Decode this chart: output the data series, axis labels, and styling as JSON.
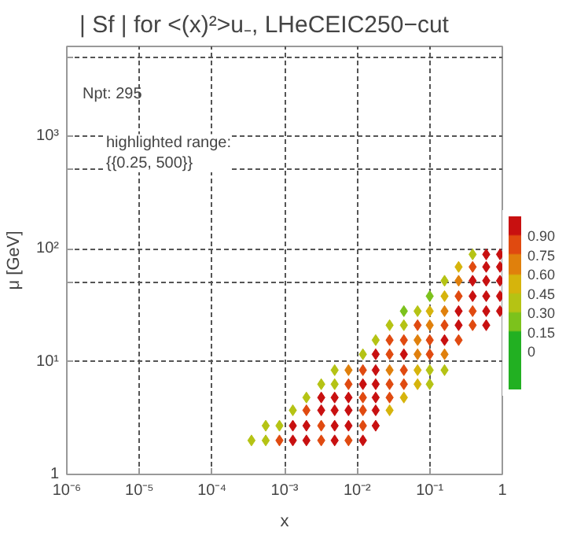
{
  "chart_data": {
    "type": "scatter",
    "title": "| Sf | for <(x)²>u₋, LHeCEIC250−cut",
    "xlabel": "x",
    "ylabel": "μ [GeV]",
    "log": "xy",
    "marker": "diamond",
    "grid": true,
    "xlim": [
      1e-06,
      1
    ],
    "ylim": [
      1,
      6200
    ],
    "xticks": [
      {
        "value": 1e-06,
        "label": "10⁻⁶"
      },
      {
        "value": 1e-05,
        "label": "10⁻⁵"
      },
      {
        "value": 0.0001,
        "label": "10⁻⁴"
      },
      {
        "value": 0.001,
        "label": "10⁻³"
      },
      {
        "value": 0.01,
        "label": "10⁻²"
      },
      {
        "value": 0.1,
        "label": "10⁻¹"
      },
      1
    ],
    "yticks": [
      1,
      {
        "value": 10,
        "label": "10¹"
      },
      {
        "value": 50,
        "label": null
      },
      {
        "value": 100,
        "label": "10²"
      },
      {
        "value": 500,
        "label": null
      },
      {
        "value": 1000,
        "label": "10³"
      },
      {
        "value": 5000,
        "label": null
      }
    ],
    "clim": [
      -0.3,
      1.05
    ],
    "cticks": [
      0,
      0.15,
      {
        "value": 0.3,
        "label": "0.30"
      },
      0.45,
      {
        "value": 0.6,
        "label": "0.60"
      },
      0.75,
      {
        "value": 0.9,
        "label": "0.90"
      }
    ],
    "annotations": [
      "Npt: 295",
      "highlighted range:\n{{0.25, 500}}"
    ],
    "series": [
      {
        "x": [
          0.00035,
          0.00055,
          0.00085,
          0.0013,
          0.002,
          0.0032,
          0.0049,
          0.0076,
          0.012
        ],
        "values": [
          2,
          2,
          2,
          2,
          2,
          2,
          2,
          2,
          2
        ],
        "colors": [
          "#b5c314",
          "#b5c314",
          "#e04a10",
          "#c81010",
          "#c81010",
          "#e04a10",
          "#c81010",
          "#e04a10",
          "#c81010"
        ]
      },
      {
        "x": [
          0.00055,
          0.00085,
          0.0013,
          0.002,
          0.0032,
          0.0049,
          0.0076,
          0.012,
          0.018
        ],
        "values": [
          2.7,
          2.7,
          2.7,
          2.7,
          2.7,
          2.7,
          2.7,
          2.7,
          2.7
        ],
        "colors": [
          "#b5c314",
          "#b5c314",
          "#c81010",
          "#c81010",
          "#e04a10",
          "#c81010",
          "#c81010",
          "#e04a10",
          "#c81010"
        ]
      },
      {
        "x": [
          0.0013,
          0.002,
          0.0032,
          0.0049,
          0.0076,
          0.012,
          0.018,
          0.028
        ],
        "values": [
          3.7,
          3.7,
          3.7,
          3.7,
          3.7,
          3.7,
          3.7,
          3.7
        ],
        "colors": [
          "#b5c314",
          "#e04a10",
          "#c81010",
          "#c81010",
          "#c81010",
          "#e04a10",
          "#c81010",
          "#d6b40c"
        ]
      },
      {
        "x": [
          0.002,
          0.0032,
          0.0049,
          0.0076,
          0.012,
          0.018,
          0.028,
          0.044
        ],
        "values": [
          4.8,
          4.8,
          4.8,
          4.8,
          4.8,
          4.8,
          4.8,
          4.8
        ],
        "colors": [
          "#b5c314",
          "#c81010",
          "#c81010",
          "#c81010",
          "#e04a10",
          "#c81010",
          "#e04a10",
          "#d6b40c"
        ]
      },
      {
        "x": [
          0.0032,
          0.0049,
          0.0076,
          0.012,
          0.018,
          0.028,
          0.044,
          0.068,
          0.1
        ],
        "values": [
          6.3,
          6.3,
          6.3,
          6.3,
          6.3,
          6.3,
          6.3,
          6.3,
          6.3
        ],
        "colors": [
          "#b5c314",
          "#b5c314",
          "#e04a10",
          "#c81010",
          "#c81010",
          "#e04a10",
          "#e04a10",
          "#d6b40c",
          "#b5c314"
        ]
      },
      {
        "x": [
          0.0049,
          0.0076,
          0.012,
          0.018,
          0.028,
          0.044,
          0.068,
          0.1,
          0.16
        ],
        "values": [
          8.4,
          8.4,
          8.4,
          8.4,
          8.4,
          8.4,
          8.4,
          8.4,
          8.4
        ],
        "colors": [
          "#b5c314",
          "#e0800c",
          "#e04a10",
          "#c81010",
          "#e0800c",
          "#e04a10",
          "#d6b40c",
          "#b5c314",
          "#b5c314"
        ]
      },
      {
        "x": [
          0.012,
          0.018,
          0.028,
          0.044,
          0.068,
          0.1,
          0.16
        ],
        "values": [
          11.6,
          11.6,
          11.6,
          11.6,
          11.6,
          11.6,
          11.6
        ],
        "colors": [
          "#b5c314",
          "#c81010",
          "#e04a10",
          "#c81010",
          "#e0800c",
          "#e04a10",
          "#e0800c"
        ]
      },
      {
        "x": [
          0.018,
          0.028,
          0.044,
          0.068,
          0.1,
          0.16,
          0.25
        ],
        "values": [
          15.5,
          15.5,
          15.5,
          15.5,
          15.5,
          15.5,
          15.5
        ],
        "colors": [
          "#b5c314",
          "#e04a10",
          "#e04a10",
          "#e0800c",
          "#e04a10",
          "#c81010",
          "#e04a10"
        ]
      },
      {
        "x": [
          0.028,
          0.044,
          0.068,
          0.1,
          0.16,
          0.25,
          0.39,
          0.6
        ],
        "values": [
          21,
          21,
          21,
          21,
          21,
          21,
          21,
          21
        ],
        "colors": [
          "#b5c314",
          "#b5c314",
          "#e04a10",
          "#e0800c",
          "#e04a10",
          "#c81010",
          "#e04a10",
          "#c81010"
        ]
      },
      {
        "x": [
          0.044,
          0.068,
          0.1,
          0.16,
          0.25,
          0.39,
          0.6,
          0.93
        ],
        "values": [
          28,
          28,
          28,
          28,
          28,
          28,
          28,
          28
        ],
        "colors": [
          "#7cc21c",
          "#b5c314",
          "#d6b40c",
          "#e0800c",
          "#c81010",
          "#e04a10",
          "#c81010",
          "#c81010"
        ]
      },
      {
        "x": [
          0.1,
          0.16,
          0.25,
          0.39,
          0.6,
          0.93
        ],
        "values": [
          38,
          38,
          38,
          38,
          38,
          38
        ],
        "colors": [
          "#7cc21c",
          "#d6b40c",
          "#e04a10",
          "#c81010",
          "#c81010",
          "#c81010"
        ]
      },
      {
        "x": [
          0.16,
          0.25,
          0.39,
          0.6,
          0.93
        ],
        "values": [
          52,
          52,
          52,
          52,
          52
        ],
        "colors": [
          "#b5c314",
          "#e0800c",
          "#c81010",
          "#c81010",
          "#c81010"
        ]
      },
      {
        "x": [
          0.25,
          0.39,
          0.6,
          0.93
        ],
        "values": [
          69,
          69,
          69,
          69
        ],
        "colors": [
          "#d6b40c",
          "#e04a10",
          "#c81010",
          "#c81010"
        ]
      },
      {
        "x": [
          0.39,
          0.6,
          0.93
        ],
        "values": [
          89,
          89,
          89
        ],
        "colors": [
          "#b5c314",
          "#c81010",
          "#c81010"
        ]
      }
    ]
  }
}
